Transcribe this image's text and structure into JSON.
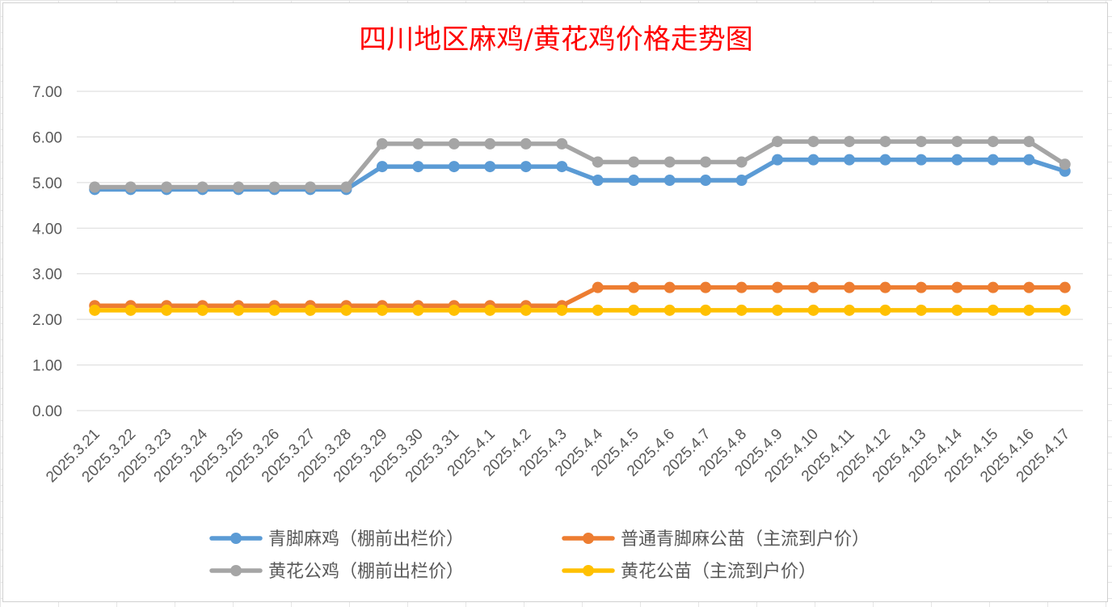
{
  "chart_data": {
    "type": "line",
    "title": "四川地区麻鸡/黄花鸡价格走势图",
    "title_color": "#ff0000",
    "categories": [
      "2025.3.21",
      "2025.3.22",
      "2025.3.23",
      "2025.3.24",
      "2025.3.25",
      "2025.3.26",
      "2025.3.27",
      "2025.3.28",
      "2025.3.29",
      "2025.3.30",
      "2025.3.31",
      "2025.4.1",
      "2025.4.2",
      "2025.4.3",
      "2025.4.4",
      "2025.4.5",
      "2025.4.6",
      "2025.4.7",
      "2025.4.8",
      "2025.4.9",
      "2025.4.10",
      "2025.4.11",
      "2025.4.12",
      "2025.4.13",
      "2025.4.14",
      "2025.4.15",
      "2025.4.16",
      "2025.4.17"
    ],
    "y_ticks": [
      "0.00",
      "1.00",
      "2.00",
      "3.00",
      "4.00",
      "5.00",
      "6.00",
      "7.00"
    ],
    "ylim": [
      0,
      7
    ],
    "grid": "horizontal",
    "legend_position": "bottom",
    "series": [
      {
        "name": "青脚麻鸡（棚前出栏价）",
        "color": "#5b9bd5",
        "values": [
          4.85,
          4.85,
          4.85,
          4.85,
          4.85,
          4.85,
          4.85,
          4.85,
          5.35,
          5.35,
          5.35,
          5.35,
          5.35,
          5.35,
          5.05,
          5.05,
          5.05,
          5.05,
          5.05,
          5.5,
          5.5,
          5.5,
          5.5,
          5.5,
          5.5,
          5.5,
          5.5,
          5.25
        ]
      },
      {
        "name": "普通青脚麻公苗（主流到户价）",
        "color": "#ed7d31",
        "values": [
          2.3,
          2.3,
          2.3,
          2.3,
          2.3,
          2.3,
          2.3,
          2.3,
          2.3,
          2.3,
          2.3,
          2.3,
          2.3,
          2.3,
          2.7,
          2.7,
          2.7,
          2.7,
          2.7,
          2.7,
          2.7,
          2.7,
          2.7,
          2.7,
          2.7,
          2.7,
          2.7,
          2.7
        ]
      },
      {
        "name": "黄花公鸡（棚前出栏价）",
        "color": "#a5a5a5",
        "values": [
          4.9,
          4.9,
          4.9,
          4.9,
          4.9,
          4.9,
          4.9,
          4.9,
          5.85,
          5.85,
          5.85,
          5.85,
          5.85,
          5.85,
          5.45,
          5.45,
          5.45,
          5.45,
          5.45,
          5.9,
          5.9,
          5.9,
          5.9,
          5.9,
          5.9,
          5.9,
          5.9,
          5.4
        ]
      },
      {
        "name": "黄花公苗（主流到户价）",
        "color": "#ffc000",
        "values": [
          2.2,
          2.2,
          2.2,
          2.2,
          2.2,
          2.2,
          2.2,
          2.2,
          2.2,
          2.2,
          2.2,
          2.2,
          2.2,
          2.2,
          2.2,
          2.2,
          2.2,
          2.2,
          2.2,
          2.2,
          2.2,
          2.2,
          2.2,
          2.2,
          2.2,
          2.2,
          2.2,
          2.2
        ]
      }
    ]
  }
}
